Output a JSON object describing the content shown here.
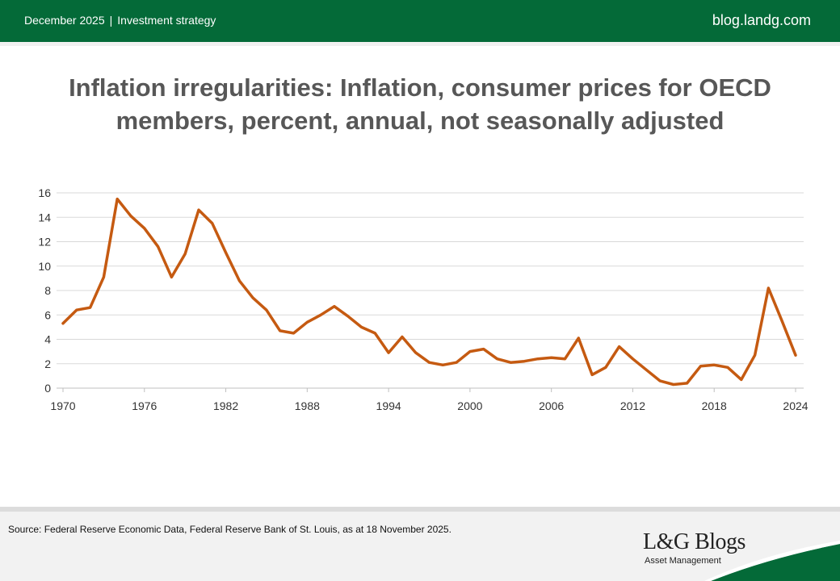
{
  "header": {
    "date": "December 2025",
    "separator": "|",
    "category": "Investment strategy",
    "site": "blog.landg.com"
  },
  "title_line1": "Inflation irregularities: Inflation, consumer prices for OECD",
  "title_line2": "members, percent, annual, not seasonally adjusted",
  "footer": {
    "source": "Source: Federal Reserve Economic Data, Federal Reserve Bank of St. Louis, as at 18 November 2025.",
    "brand": "L&G Blogs",
    "brand_sub": "Asset Management"
  },
  "colors": {
    "header_green": "#046A38",
    "line": "#C55A11",
    "grid": "#d9d9d9"
  },
  "chart_data": {
    "type": "line",
    "title": "",
    "xlabel": "",
    "ylabel": "",
    "xlim": [
      1970,
      2024
    ],
    "ylim": [
      0,
      16
    ],
    "x_ticks": [
      1970,
      1976,
      1982,
      1988,
      1994,
      2000,
      2006,
      2012,
      2018,
      2024
    ],
    "y_ticks": [
      0,
      2,
      4,
      6,
      8,
      10,
      12,
      14,
      16
    ],
    "grid": "horizontal",
    "legend": "none",
    "series": [
      {
        "x": [
          1970,
          1971,
          1972,
          1973,
          1974,
          1975,
          1976,
          1977,
          1978,
          1979,
          1980,
          1981,
          1982,
          1983,
          1984,
          1985,
          1986,
          1987,
          1988,
          1989,
          1990,
          1991,
          1992,
          1993,
          1994,
          1995,
          1996,
          1997,
          1998,
          1999,
          2000,
          2001,
          2002,
          2003,
          2004,
          2005,
          2006,
          2007,
          2008,
          2009,
          2010,
          2011,
          2012,
          2013,
          2014,
          2015,
          2016,
          2017,
          2018,
          2019,
          2020,
          2021,
          2022,
          2023,
          2024
        ],
        "values": [
          5.3,
          6.4,
          6.6,
          9.1,
          15.5,
          14.1,
          13.1,
          11.6,
          9.1,
          11.0,
          14.6,
          13.5,
          11.1,
          8.8,
          7.4,
          6.4,
          4.7,
          4.5,
          5.4,
          6.0,
          6.7,
          5.9,
          5.0,
          4.5,
          2.9,
          4.2,
          2.9,
          2.1,
          1.9,
          2.1,
          3.0,
          3.2,
          2.4,
          2.1,
          2.2,
          2.4,
          2.5,
          2.4,
          4.1,
          1.1,
          1.7,
          3.4,
          2.4,
          1.5,
          0.6,
          0.3,
          0.4,
          1.8,
          1.9,
          1.7,
          0.7,
          2.7,
          8.2,
          5.5,
          2.7
        ]
      }
    ]
  }
}
